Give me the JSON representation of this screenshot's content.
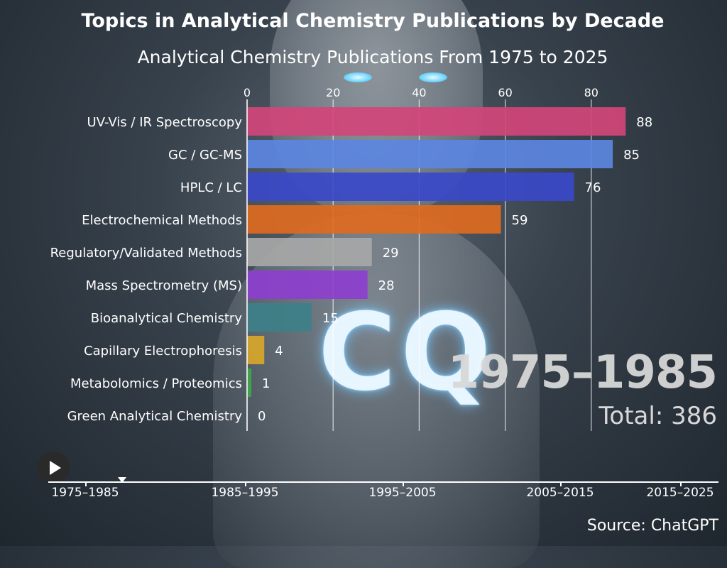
{
  "title": "Topics in Analytical Chemistry Publications by Decade",
  "subtitle": "Analytical Chemistry Publications From 1975 to 2025",
  "period": "1975–1985",
  "total": "Total: 386",
  "source": "Source: ChatGPT",
  "timeline": {
    "labels": [
      "1975–1985",
      "1985–1995",
      "1995–2005",
      "2005–2015",
      "2015–2025"
    ],
    "current": "1975–1985"
  },
  "controls": {
    "play_icon": "play-icon"
  },
  "chart_data": {
    "type": "bar",
    "orientation": "horizontal",
    "xlim": [
      0,
      90
    ],
    "xticks": [
      0,
      20,
      40,
      60,
      80
    ],
    "grid": true,
    "categories": [
      "UV-Vis / IR Spectroscopy",
      "GC / GC-MS",
      "HPLC / LC",
      "Electrochemical Methods",
      "Regulatory/Validated Methods",
      "Mass Spectrometry (MS)",
      "Bioanalytical Chemistry",
      "Capillary Electrophoresis",
      "Metabolomics / Proteomics",
      "Green Analytical Chemistry"
    ],
    "values": [
      88,
      85,
      76,
      59,
      29,
      28,
      15,
      4,
      1,
      0
    ],
    "value_labels": [
      "88",
      "85",
      "76",
      "59",
      "29",
      "28",
      "15",
      "4",
      "1",
      "0"
    ],
    "colors": [
      "#d1457a",
      "#5b86e0",
      "#3a49c8",
      "#dd6a1f",
      "#a7a7a7",
      "#8d3fce",
      "#3d8088",
      "#d7a72a",
      "#3fa64a",
      "#2a8f58"
    ]
  }
}
